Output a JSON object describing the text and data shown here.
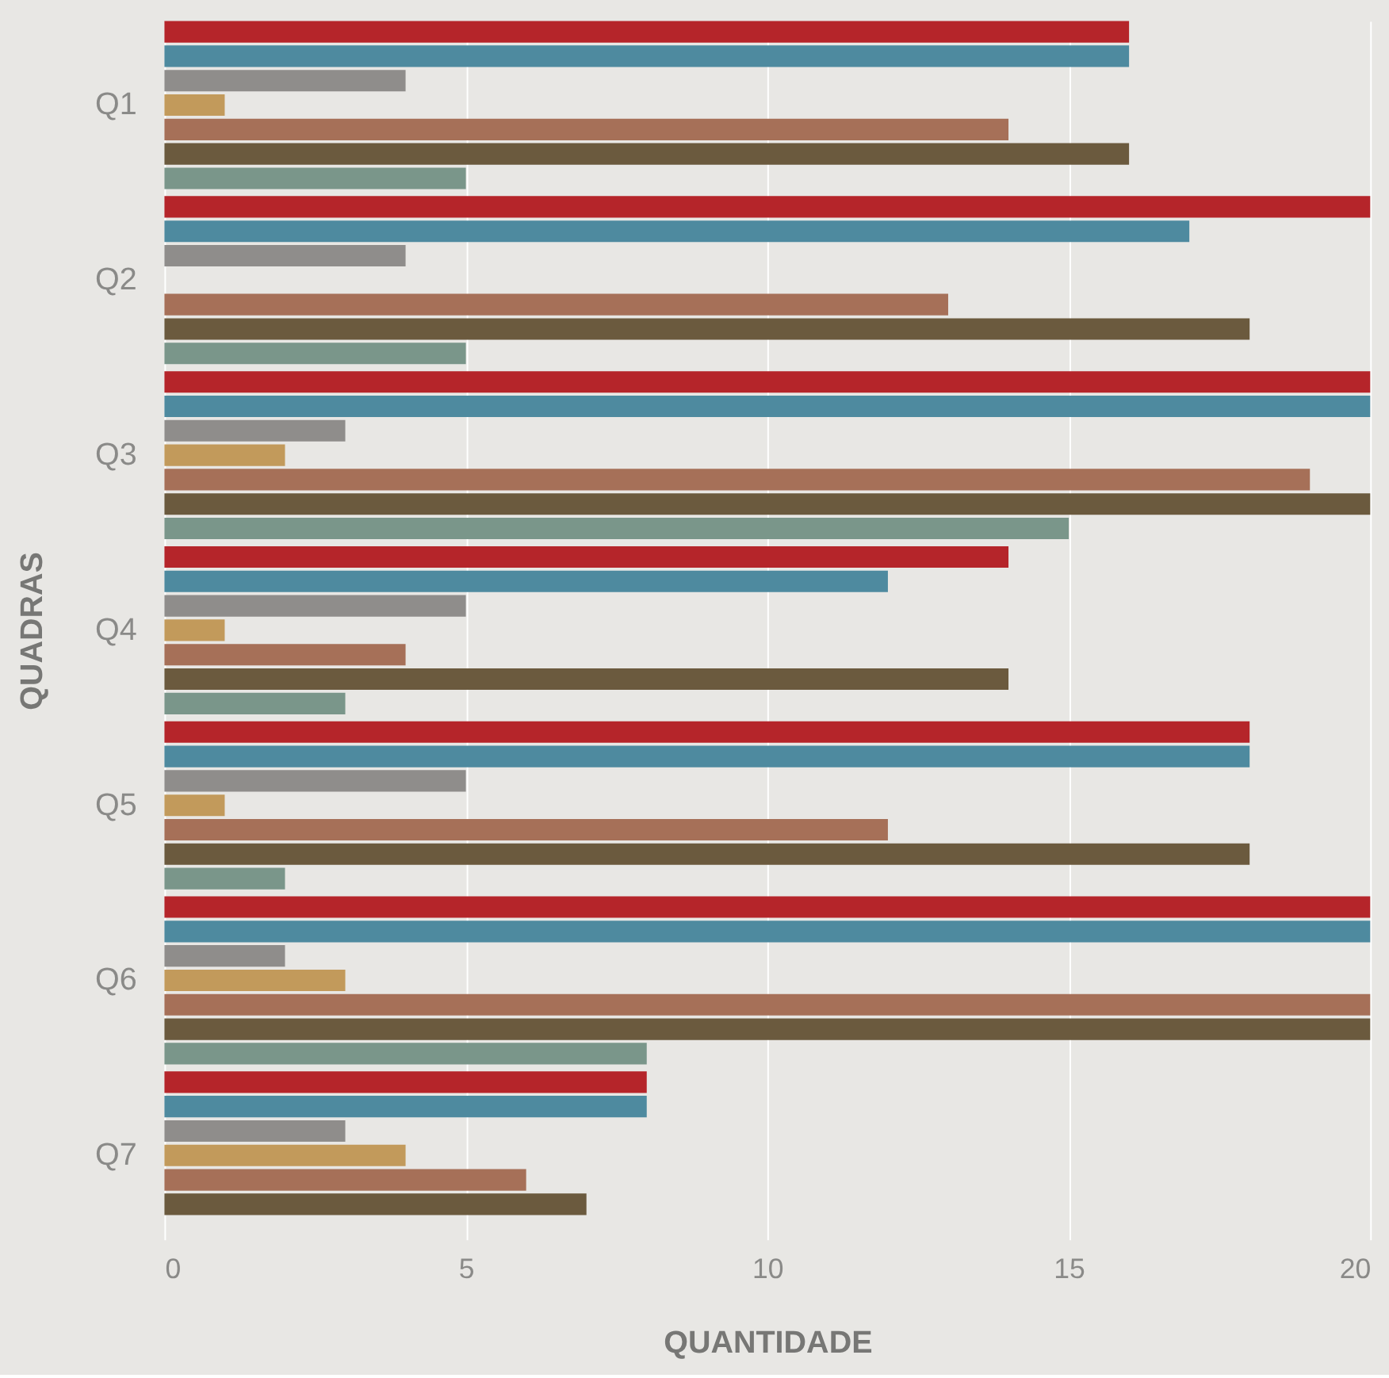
{
  "chart_data": {
    "type": "bar",
    "orientation": "horizontal",
    "xlabel": "QUANTIDADE",
    "ylabel": "QUADRAS",
    "categories": [
      "Q1",
      "Q2",
      "Q3",
      "Q4",
      "Q5",
      "Q6",
      "Q7"
    ],
    "series": [
      {
        "color": "#b5252a",
        "values": [
          16,
          20,
          20,
          14,
          18,
          20,
          8
        ]
      },
      {
        "color": "#4e8a9f",
        "values": [
          16,
          17,
          20,
          12,
          18,
          20,
          8
        ]
      },
      {
        "color": "#8f8d8b",
        "values": [
          4,
          4,
          3,
          5,
          5,
          2,
          3
        ]
      },
      {
        "color": "#c29a5b",
        "values": [
          1,
          0,
          2,
          1,
          1,
          3,
          4
        ]
      },
      {
        "color": "#a67058",
        "values": [
          14,
          13,
          19,
          4,
          12,
          20,
          6
        ]
      },
      {
        "color": "#6b5a3e",
        "values": [
          16,
          18,
          20,
          14,
          18,
          20,
          7
        ]
      },
      {
        "color": "#7a968a",
        "values": [
          5,
          5,
          15,
          3,
          2,
          8,
          0
        ]
      }
    ],
    "xlim": [
      0,
      20
    ],
    "xticks": [
      0,
      5,
      10,
      15,
      20
    ],
    "grid": "x",
    "legend": false
  }
}
